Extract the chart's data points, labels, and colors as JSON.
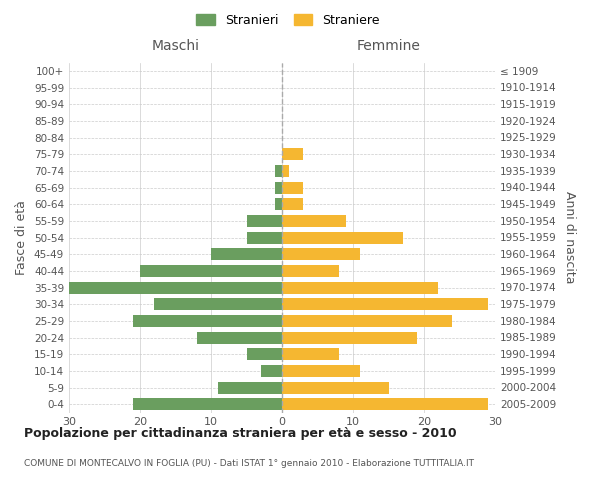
{
  "age_groups": [
    "0-4",
    "5-9",
    "10-14",
    "15-19",
    "20-24",
    "25-29",
    "30-34",
    "35-39",
    "40-44",
    "45-49",
    "50-54",
    "55-59",
    "60-64",
    "65-69",
    "70-74",
    "75-79",
    "80-84",
    "85-89",
    "90-94",
    "95-99",
    "100+"
  ],
  "birth_years": [
    "2005-2009",
    "2000-2004",
    "1995-1999",
    "1990-1994",
    "1985-1989",
    "1980-1984",
    "1975-1979",
    "1970-1974",
    "1965-1969",
    "1960-1964",
    "1955-1959",
    "1950-1954",
    "1945-1949",
    "1940-1944",
    "1935-1939",
    "1930-1934",
    "1925-1929",
    "1920-1924",
    "1915-1919",
    "1910-1914",
    "≤ 1909"
  ],
  "maschi": [
    21,
    9,
    3,
    5,
    12,
    21,
    18,
    30,
    20,
    10,
    5,
    5,
    1,
    1,
    1,
    0,
    0,
    0,
    0,
    0,
    0
  ],
  "femmine": [
    29,
    15,
    11,
    8,
    19,
    24,
    29,
    22,
    8,
    11,
    17,
    9,
    3,
    3,
    1,
    3,
    0,
    0,
    0,
    0,
    0
  ],
  "male_color": "#6a9e5f",
  "female_color": "#f5b731",
  "grid_color": "#cccccc",
  "dashed_line_color": "#aaaaaa",
  "title": "Popolazione per cittadinanza straniera per età e sesso - 2010",
  "subtitle": "COMUNE DI MONTECALVO IN FOGLIA (PU) - Dati ISTAT 1° gennaio 2010 - Elaborazione TUTTITALIA.IT",
  "left_label": "Maschi",
  "right_label": "Femmine",
  "ylabel_left": "Fasce di età",
  "ylabel_right": "Anni di nascita",
  "legend_male": "Stranieri",
  "legend_female": "Straniere",
  "xlim": 30,
  "background_color": "#ffffff"
}
